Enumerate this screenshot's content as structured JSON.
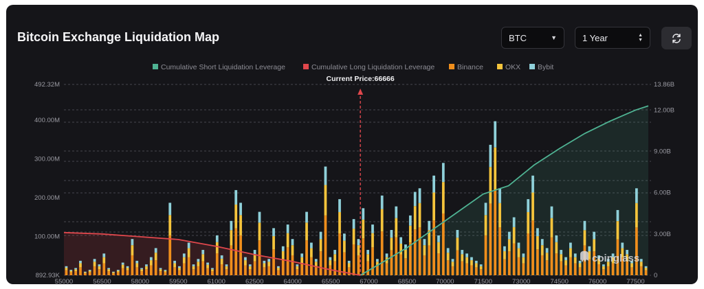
{
  "header": {
    "title": "Bitcoin Exchange Liquidation Map",
    "symbol_select": "BTC",
    "period_select": "1 Year",
    "refresh_icon": "refresh-icon"
  },
  "watermark": {
    "text": "coinglass",
    "icon": "coinglass-logo-icon"
  },
  "colors": {
    "short": "#4fb393",
    "long": "#e0474c",
    "binance": "#ef8e1c",
    "okx": "#f5c43c",
    "bybit": "#8fd0d9"
  },
  "chart_data": {
    "type": "bar",
    "legend": [
      {
        "name": "Cumulative Short Liquidation Leverage",
        "color": "#4fb393"
      },
      {
        "name": "Cumulative Long Liquidation Leverage",
        "color": "#e0474c"
      },
      {
        "name": "Binance",
        "color": "#ef8e1c"
      },
      {
        "name": "OKX",
        "color": "#f5c43c"
      },
      {
        "name": "Bybit",
        "color": "#8fd0d9"
      }
    ],
    "current_price_label": "Current Price:66666",
    "current_price": 66666,
    "left_axis": {
      "ticks": [
        "892.93K",
        "100.00M",
        "200.00M",
        "300.00M",
        "400.00M",
        "492.32M"
      ],
      "range": [
        0,
        492.32
      ]
    },
    "right_axis": {
      "ticks": [
        "0",
        "3.00B",
        "6.00B",
        "9.00B",
        "12.00B",
        "13.86B"
      ],
      "range": [
        0,
        13.86
      ]
    },
    "x_range": [
      55000,
      78000
    ],
    "x_ticks": [
      55000,
      56500,
      58000,
      59500,
      61000,
      62500,
      64000,
      65500,
      67000,
      68500,
      70000,
      71500,
      73000,
      74500,
      76000,
      77500
    ],
    "x_tick_labels": [
      "55000",
      "56500",
      "58000",
      "59500",
      "61000",
      "62500",
      "64000",
      "65500",
      "67000",
      "68500",
      "70000",
      "71500",
      "73000",
      "74500",
      "76000",
      "77500"
    ],
    "bar_count": 124,
    "bar_heights_pct": [
      5,
      3,
      4,
      8,
      2,
      3,
      9,
      6,
      12,
      4,
      2,
      3,
      7,
      5,
      20,
      8,
      4,
      6,
      10,
      15,
      4,
      3,
      40,
      8,
      5,
      12,
      18,
      6,
      9,
      14,
      7,
      4,
      22,
      11,
      6,
      30,
      47,
      40,
      10,
      6,
      14,
      35,
      8,
      9,
      26,
      5,
      16,
      28,
      20,
      6,
      12,
      35,
      18,
      9,
      24,
      60,
      10,
      14,
      42,
      23,
      8,
      31,
      20,
      37,
      14,
      28,
      9,
      44,
      12,
      25,
      38,
      21,
      17,
      33,
      46,
      48,
      20,
      30,
      55,
      22,
      62,
      15,
      9,
      25,
      14,
      12,
      10,
      8,
      6,
      40,
      72,
      85,
      48,
      16,
      24,
      32,
      18,
      12,
      42,
      55,
      26,
      20,
      15,
      38,
      22,
      14,
      10,
      18,
      12,
      8,
      30,
      16,
      24,
      11,
      6,
      9,
      12,
      36,
      18,
      14,
      8,
      48,
      9,
      5
    ],
    "short_cumulative_B": [
      [
        66666,
        0
      ],
      [
        67500,
        0.9
      ],
      [
        68500,
        2.0
      ],
      [
        69500,
        3.3
      ],
      [
        70500,
        4.6
      ],
      [
        71500,
        5.9
      ],
      [
        72500,
        6.5
      ],
      [
        73500,
        8.0
      ],
      [
        74500,
        9.2
      ],
      [
        75500,
        10.3
      ],
      [
        76500,
        11.2
      ],
      [
        77500,
        12.0
      ],
      [
        78000,
        12.3
      ]
    ],
    "long_cumulative_B": [
      [
        55000,
        3.1
      ],
      [
        56500,
        3.0
      ],
      [
        58000,
        2.8
      ],
      [
        59500,
        2.6
      ],
      [
        61000,
        2.1
      ],
      [
        62500,
        1.5
      ],
      [
        64000,
        1.0
      ],
      [
        65500,
        0.4
      ],
      [
        66666,
        0
      ]
    ]
  }
}
